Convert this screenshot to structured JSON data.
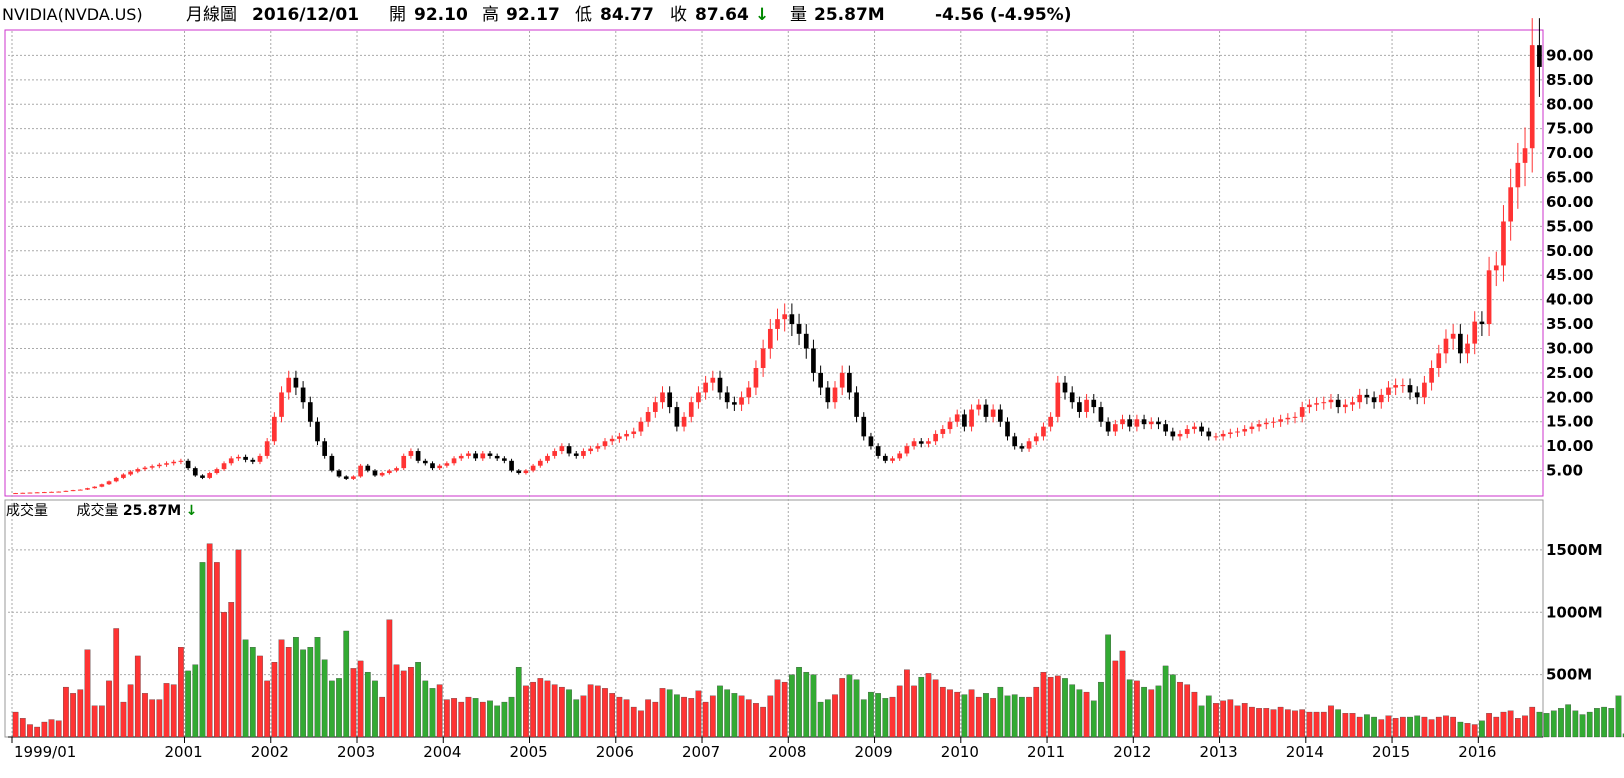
{
  "header": {
    "symbol": "NVIDIA(NVDA.US)",
    "chart_kind": "月線圖",
    "date": "2016/12/01",
    "open_label": "開",
    "open": "92.10",
    "high_label": "高",
    "high": "92.17",
    "low_label": "低",
    "low": "84.77",
    "close_label": "收",
    "close": "87.64",
    "down_arrow": "↓",
    "volume_label": "量",
    "volume": "25.87M",
    "change": "-4.56 (-4.95%)"
  },
  "volume_panel": {
    "title": "成交量",
    "legend_label": "成交量",
    "legend_value": "25.87M",
    "legend_arrow": "↓"
  },
  "colors": {
    "up": "#ff3333",
    "down": "#000000",
    "vol_up": "#ff3333",
    "vol_down": "#33aa33",
    "frame": "#cc33cc",
    "grid": "#aaaaaa"
  },
  "chart_data": [
    {
      "type": "candlestick",
      "interval": "monthly",
      "x_start": "1999/01",
      "x_end": "2016/12",
      "ylim": [
        0,
        95
      ],
      "yticks": [
        "5.00",
        "10.00",
        "15.00",
        "20.00",
        "25.00",
        "30.00",
        "35.00",
        "40.00",
        "45.00",
        "50.00",
        "55.00",
        "60.00",
        "65.00",
        "70.00",
        "75.00",
        "80.00",
        "85.00",
        "90.00"
      ],
      "xticks": [
        "1999/01",
        "2001",
        "2002",
        "2003",
        "2004",
        "2005",
        "2006",
        "2007",
        "2008",
        "2009",
        "2010",
        "2011",
        "2012",
        "2013",
        "2014",
        "2015",
        "2016"
      ],
      "close": [
        0.4,
        0.45,
        0.5,
        0.55,
        0.6,
        0.65,
        0.7,
        0.85,
        1.0,
        1.1,
        1.4,
        1.7,
        2.2,
        2.8,
        3.5,
        4.2,
        4.8,
        5.3,
        5.6,
        5.9,
        6.2,
        6.5,
        6.8,
        7.0,
        5.5,
        4.0,
        3.5,
        4.5,
        5.3,
        6.5,
        7.5,
        7.8,
        7.2,
        6.8,
        8.0,
        11.0,
        16.0,
        21.0,
        24.0,
        22.0,
        19.0,
        15.0,
        11.0,
        8.0,
        5.0,
        3.8,
        3.3,
        3.8,
        6.0,
        5.0,
        4.0,
        4.5,
        5.0,
        5.5,
        8.0,
        9.0,
        7.0,
        6.5,
        5.5,
        6.0,
        6.5,
        7.5,
        8.0,
        8.5,
        7.5,
        8.5,
        8.0,
        7.5,
        7.0,
        5.0,
        4.5,
        5.0,
        6.0,
        7.0,
        8.0,
        9.0,
        10.0,
        8.5,
        8.0,
        9.0,
        9.5,
        10.0,
        11.0,
        11.5,
        12.0,
        12.5,
        13.0,
        15.0,
        17.0,
        19.0,
        21.0,
        18.0,
        14.0,
        16.0,
        19.0,
        21.0,
        23.0,
        24.0,
        21.0,
        19.0,
        18.5,
        20.0,
        22.0,
        26.0,
        30.0,
        34.0,
        36.0,
        37.0,
        35.0,
        33.0,
        30.0,
        25.0,
        22.0,
        19.0,
        22.0,
        25.0,
        21.0,
        16.0,
        12.0,
        10.0,
        8.0,
        7.0,
        7.5,
        8.5,
        10.0,
        11.0,
        10.5,
        11.0,
        12.5,
        13.5,
        15.0,
        16.5,
        14.0,
        17.5,
        18.5,
        16.0,
        17.5,
        15.0,
        12.0,
        10.0,
        9.5,
        11.0,
        12.0,
        14.0,
        16.0,
        23.0,
        21.0,
        19.0,
        17.0,
        19.5,
        18.0,
        15.0,
        13.0,
        14.5,
        15.5,
        14.0,
        15.5,
        14.5,
        15.0,
        14.5,
        13.0,
        12.0,
        12.5,
        13.5,
        14.0,
        13.0,
        12.0,
        12.0,
        12.5,
        12.8,
        13.0,
        13.5,
        14.0,
        14.5,
        14.8,
        15.0,
        15.5,
        15.8,
        16.0,
        18.0,
        18.5,
        18.8,
        19.0,
        19.5,
        18.0,
        18.5,
        19.0,
        20.5,
        20.0,
        19.0,
        20.5,
        22.0,
        22.5,
        22.5,
        21.0,
        20.0,
        23.0,
        26.0,
        29.0,
        32.0,
        33.0,
        29.0,
        31.0,
        35.5,
        35.0,
        46.0,
        47.0,
        56.0,
        63.0,
        68.0,
        71.0,
        92.1,
        87.64
      ],
      "candle_colors_note": "red = close >= open, black = close < open"
    },
    {
      "type": "bar",
      "title": "成交量",
      "unit": "M",
      "ylim": [
        0,
        1900
      ],
      "yticks": [
        "500M",
        "1000M",
        "1500M"
      ],
      "values": [
        200,
        150,
        100,
        80,
        120,
        140,
        130,
        400,
        350,
        380,
        700,
        250,
        250,
        450,
        870,
        280,
        420,
        650,
        350,
        300,
        300,
        430,
        420,
        720,
        530,
        580,
        1400,
        1550,
        1400,
        1000,
        1080,
        1500,
        780,
        720,
        650,
        450,
        600,
        780,
        720,
        800,
        700,
        720,
        800,
        620,
        450,
        470,
        850,
        550,
        610,
        520,
        450,
        320,
        940,
        580,
        530,
        560,
        600,
        450,
        390,
        420,
        300,
        310,
        280,
        320,
        310,
        280,
        290,
        250,
        280,
        320,
        560,
        410,
        440,
        470,
        450,
        420,
        400,
        380,
        300,
        330,
        420,
        410,
        390,
        350,
        320,
        300,
        240,
        210,
        300,
        280,
        390,
        380,
        340,
        320,
        310,
        370,
        280,
        330,
        410,
        380,
        350,
        330,
        300,
        270,
        240,
        330,
        460,
        440,
        500,
        560,
        520,
        500,
        280,
        300,
        340,
        470,
        500,
        460,
        300,
        360,
        350,
        310,
        320,
        410,
        540,
        410,
        480,
        510,
        460,
        400,
        380,
        360,
        340,
        380,
        320,
        350,
        310,
        400,
        330,
        340,
        320,
        320,
        400,
        520,
        480,
        490,
        470,
        420,
        380,
        360,
        290,
        440,
        820,
        610,
        690,
        460,
        450,
        400,
        380,
        410,
        570,
        500,
        440,
        420,
        360,
        250,
        330,
        270,
        290,
        300,
        250,
        270,
        240,
        230,
        230,
        220,
        240,
        220,
        210,
        220,
        200,
        200,
        200,
        250,
        220,
        190,
        190,
        160,
        180,
        160,
        140,
        170,
        150,
        160,
        160,
        170,
        160,
        140,
        160,
        170,
        160,
        120,
        110,
        100,
        130,
        190,
        160,
        200,
        210,
        150,
        170,
        240,
        200,
        190,
        210,
        230,
        260,
        210,
        180,
        200,
        230,
        240,
        230,
        330,
        26
      ],
      "up_flags_note": "red bars when monthly candle closed up, green when down"
    }
  ]
}
